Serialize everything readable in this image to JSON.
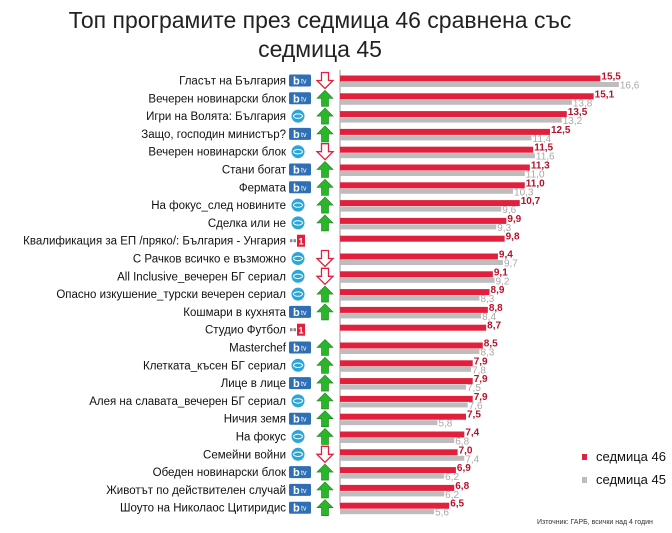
{
  "chart_data": {
    "type": "bar",
    "orientation": "horizontal",
    "title_line1": "Топ програмите през седмица 46 сравнена със",
    "title_line2": "седмица 45",
    "categories": [
      "Гласът на България",
      "Вечерен новинарски блок",
      "Игри на Волята: България",
      "Защо, господин министър?",
      "Вечерен новинарски блок",
      "Стани богат",
      "Фермата",
      "На фокус_след новините",
      "Сделка или не",
      "Квалификация за ЕП /пряко/: България - Унгария",
      "С Рачков всичко е възможно",
      "All Inclusive_вечерен БГ сериал",
      "Опасно изкушение_турски вечерен сериал",
      "Кошмари в кухнята",
      "Студио Футбол",
      "Masterchef",
      "Клетката_късен БГ сериал",
      "Лице в лице",
      "Алея на славата_вечерен БГ сериал",
      "Ничия земя",
      "На фокус",
      "Семейни войни",
      "Обеден новинарски блок",
      "Животът по действителен случай",
      "Шоуто на Николаос Цитиридис"
    ],
    "channels": [
      "btv",
      "btv",
      "nova",
      "btv",
      "nova",
      "btv",
      "btv",
      "nova",
      "nova",
      "bnt1",
      "nova",
      "nova",
      "nova",
      "btv",
      "bnt1",
      "btv",
      "nova",
      "btv",
      "nova",
      "btv",
      "nova",
      "nova",
      "btv",
      "btv",
      "btv"
    ],
    "trend": [
      "down",
      "up",
      "up",
      "up",
      "down",
      "up",
      "up",
      "up",
      "up",
      "none",
      "down",
      "down",
      "up",
      "up",
      "none",
      "up",
      "up",
      "up",
      "up",
      "up",
      "up",
      "down",
      "up",
      "up",
      "up"
    ],
    "series": [
      {
        "name": "седмица 46",
        "color": "#e0203c",
        "values": [
          15.5,
          15.1,
          13.5,
          12.5,
          11.5,
          11.3,
          11.0,
          10.7,
          9.9,
          9.8,
          9.4,
          9.1,
          8.9,
          8.8,
          8.7,
          8.5,
          7.9,
          7.9,
          7.9,
          7.5,
          7.4,
          7.0,
          6.9,
          6.8,
          6.5
        ],
        "labels": [
          "15,5",
          "15,1",
          "13,5",
          "12,5",
          "11,5",
          "11,3",
          "11,0",
          "10,7",
          "9,9",
          "9,8",
          "9,4",
          "9,1",
          "8,9",
          "8,8",
          "8,7",
          "8,5",
          "7,9",
          "7,9",
          "7,9",
          "7,5",
          "7,4",
          "7,0",
          "6,9",
          "6,8",
          "6,5"
        ]
      },
      {
        "name": "седмица 45",
        "color": "#bdbdbd",
        "values": [
          16.6,
          13.8,
          13.2,
          11.4,
          11.6,
          11.0,
          10.3,
          9.6,
          9.3,
          null,
          9.7,
          9.2,
          8.3,
          8.4,
          null,
          8.3,
          7.8,
          7.5,
          7.6,
          5.8,
          6.8,
          7.4,
          6.2,
          6.2,
          5.6
        ],
        "labels": [
          "16,6",
          "13,8",
          "13,2",
          "11,4",
          "11,6",
          "11,0",
          "10,3",
          "9,6",
          "9,3",
          null,
          "9,7",
          "9,2",
          "8,3",
          "8,4",
          null,
          "8,3",
          "7,8",
          "7,5",
          "7,6",
          "5,8",
          "6,8",
          "7,4",
          "6,2",
          "6,2",
          "5,6"
        ]
      }
    ],
    "xlim": [
      0,
      17
    ],
    "legend_position": "bottom-right"
  },
  "legend": {
    "s46": "седмица 46",
    "s45": "седмица 45"
  },
  "colors": {
    "s46": "#e0203c",
    "s45": "#bdbdbd",
    "up": "#2bb52b",
    "down": "#e0203c",
    "btv": "#2f6fb5",
    "nova": "#2aa7d8",
    "bnt": "#e0203c"
  },
  "channel_logo_text": {
    "btv": "tv",
    "btv_mark": "b",
    "bnt": "1"
  },
  "source": "Източник: ГАРБ, всички над 4 годин"
}
